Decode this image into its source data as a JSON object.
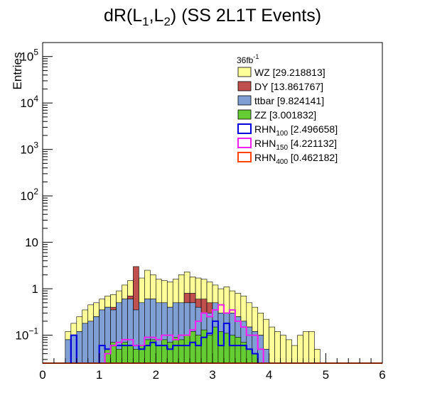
{
  "chart_data": {
    "type": "histogram",
    "title": "dR(L1,L2) (SS 2L1T Events)",
    "title_parts": {
      "pre": "dR(L",
      "sub1": "1",
      "mid": ",L",
      "sub2": "2",
      "post": ") (SS 2L1T Events)"
    },
    "xlabel": "",
    "ylabel": "Entries",
    "y_scale": "log",
    "xlim": [
      0,
      6
    ],
    "ylim": [
      0.025,
      200000
    ],
    "x_ticks": [
      "0",
      "1",
      "2",
      "3",
      "4",
      "5",
      "6"
    ],
    "y_ticks": [
      {
        "value": 0.1,
        "base": "10",
        "exp": "−1"
      },
      {
        "value": 1,
        "base": "1",
        "exp": ""
      },
      {
        "value": 10,
        "base": "10",
        "exp": ""
      },
      {
        "value": 100,
        "base": "10",
        "exp": "2"
      },
      {
        "value": 1000,
        "base": "10",
        "exp": "3"
      },
      {
        "value": 10000,
        "base": "10",
        "exp": "4"
      },
      {
        "value": 100000,
        "base": "10",
        "exp": "5"
      }
    ],
    "luminosity": {
      "base": "36fb",
      "exp": "-1"
    },
    "bin_width": 0.1,
    "bin_start": 0,
    "stacked": [
      {
        "name": "WZ",
        "total": "[29.218813]",
        "color": "#ffff99",
        "cumulative": [
          0,
          0,
          0,
          0,
          0.12,
          0.18,
          0.25,
          0.35,
          0.45,
          0.5,
          0.6,
          0.7,
          0.75,
          0.9,
          1.2,
          1.5,
          1.6,
          1.7,
          2.5,
          2.0,
          1.6,
          1.5,
          1.4,
          1.6,
          2.0,
          2.3,
          1.8,
          1.7,
          1.6,
          1.4,
          1.2,
          1.0,
          1.1,
          0.9,
          0.8,
          0.7,
          0.5,
          0.4,
          0.3,
          0.22,
          0.15,
          0.12,
          0.1,
          0.08,
          0.06,
          0.1,
          0.12,
          0.12,
          0.05,
          0,
          0,
          0,
          0,
          0,
          0,
          0,
          0,
          0,
          0,
          0
        ]
      },
      {
        "name": "DY",
        "total": "[13.861767]",
        "color": "#c0504d",
        "cumulative": [
          0,
          0,
          0,
          0,
          0.08,
          0.1,
          0.12,
          0.18,
          0.2,
          0.25,
          0.35,
          0.4,
          0.4,
          0.5,
          0.6,
          0.7,
          3.0,
          0.5,
          0.6,
          0.6,
          0.5,
          0.5,
          0.4,
          0.5,
          0.5,
          0.8,
          0.8,
          0.6,
          0.6,
          0.5,
          0.4,
          0.3,
          0.3,
          0.3,
          0.25,
          0.2,
          0.15,
          0.12,
          0.1,
          0.05,
          0,
          0,
          0,
          0,
          0,
          0,
          0,
          0,
          0,
          0,
          0,
          0,
          0,
          0,
          0,
          0,
          0,
          0,
          0,
          0
        ]
      },
      {
        "name": "ttbar",
        "total": "[9.824141]",
        "color": "#7f9fd5",
        "cumulative": [
          0,
          0,
          0,
          0,
          0.08,
          0.1,
          0.12,
          0.18,
          0.2,
          0.25,
          0.35,
          0.4,
          0.35,
          0.5,
          0.6,
          0.6,
          0.35,
          0.5,
          0.6,
          0.6,
          0.5,
          0.5,
          0.4,
          0.5,
          0.5,
          0.5,
          0.5,
          0.4,
          0.3,
          0.3,
          0.5,
          0.3,
          0.3,
          0.3,
          0.25,
          0.2,
          0.15,
          0.12,
          0.1,
          0.05,
          0,
          0,
          0,
          0,
          0,
          0,
          0,
          0,
          0,
          0,
          0,
          0,
          0,
          0,
          0,
          0,
          0,
          0,
          0,
          0
        ]
      },
      {
        "name": "ZZ",
        "total": "[3.001832]",
        "color": "#66cc33",
        "cumulative": [
          0,
          0,
          0,
          0,
          0,
          0,
          0,
          0,
          0,
          0,
          0,
          0.05,
          0.07,
          0.05,
          0.07,
          0.06,
          0.05,
          0.06,
          0.08,
          0.08,
          0.06,
          0.08,
          0.07,
          0.09,
          0.08,
          0.1,
          0.12,
          0.1,
          0.13,
          0.1,
          0.15,
          0.12,
          0.11,
          0.1,
          0.09,
          0.07,
          0.05,
          0.04,
          0,
          0,
          0,
          0,
          0,
          0,
          0,
          0,
          0,
          0,
          0,
          0,
          0,
          0,
          0,
          0,
          0,
          0,
          0,
          0,
          0,
          0
        ]
      }
    ],
    "overlays": [
      {
        "name": "RHN100",
        "label_base": "RHN",
        "label_sub": "100",
        "total": "[2.496658]",
        "color": "#0000dd",
        "values": [
          0,
          0,
          0,
          0,
          0,
          0.1,
          0,
          0,
          0,
          0,
          0.06,
          0.05,
          0.06,
          0.06,
          0.06,
          0.06,
          0.06,
          0.05,
          0.06,
          0.07,
          0.06,
          0.06,
          0.05,
          0.06,
          0.06,
          0.06,
          0.07,
          0.06,
          0.09,
          0.11,
          0.2,
          0.06,
          0.18,
          0.06,
          0.06,
          0.06,
          0.05,
          0.04,
          0,
          0,
          0,
          0,
          0,
          0,
          0,
          0,
          0,
          0,
          0,
          0,
          0,
          0,
          0,
          0,
          0,
          0,
          0,
          0,
          0,
          0
        ]
      },
      {
        "name": "RHN150",
        "label_base": "RHN",
        "label_sub": "150",
        "total": "[4.221132]",
        "color": "#ee22ee",
        "values": [
          0,
          0,
          0,
          0,
          0,
          0,
          0,
          0,
          0,
          0,
          0,
          0.04,
          0.06,
          0.07,
          0.08,
          0.08,
          0.06,
          0.06,
          0.09,
          0.09,
          0.08,
          0.1,
          0.1,
          0.08,
          0.1,
          0.1,
          0.13,
          0.2,
          0.3,
          0.25,
          0.35,
          0.45,
          0.3,
          0.35,
          0.2,
          0.15,
          0.1,
          0.1,
          0.05,
          0,
          0,
          0,
          0,
          0,
          0,
          0,
          0,
          0,
          0,
          0,
          0,
          0,
          0,
          0,
          0,
          0,
          0,
          0,
          0,
          0
        ]
      },
      {
        "name": "RHN400",
        "label_base": "RHN",
        "label_sub": "400",
        "total": "[0.462182]",
        "color": "#ff4400",
        "values": [
          0,
          0,
          0,
          0,
          0,
          0,
          0,
          0,
          0,
          0,
          0,
          0,
          0,
          0,
          0,
          0,
          0,
          0,
          0,
          0,
          0,
          0,
          0,
          0,
          0,
          0,
          0,
          0,
          0,
          0,
          0,
          0,
          0,
          0,
          0,
          0,
          0,
          0,
          0,
          0,
          0,
          0,
          0,
          0,
          0,
          0,
          0,
          0,
          0,
          0,
          0,
          0,
          0,
          0,
          0,
          0,
          0,
          0,
          0,
          0
        ]
      }
    ],
    "legend_position": "top-right"
  }
}
